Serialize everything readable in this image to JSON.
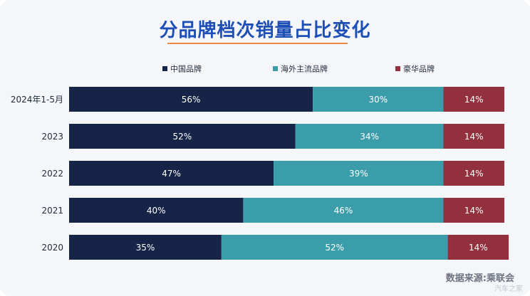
{
  "title": "分品牌档次销量占比变化",
  "source_text": "数据来源:乘联会",
  "watermark_text": "汽车之家",
  "chart_data": {
    "type": "bar",
    "stacked": true,
    "orientation": "horizontal",
    "percent": true,
    "categories": [
      "2024年1-5月",
      "2023",
      "2022",
      "2021",
      "2020"
    ],
    "series": [
      {
        "name": "中国品牌",
        "color": "#152447",
        "values": [
          56,
          52,
          47,
          40,
          35
        ],
        "labels": [
          "56%",
          "52%",
          "47%",
          "40%",
          "35%"
        ]
      },
      {
        "name": "海外主流品牌",
        "color": "#3c9daa",
        "values": [
          30,
          34,
          39,
          46,
          52
        ],
        "labels": [
          "30%",
          "34%",
          "39%",
          "46%",
          "52%"
        ]
      },
      {
        "name": "豪华品牌",
        "color": "#92303d",
        "values": [
          14,
          14,
          14,
          14,
          14
        ],
        "labels": [
          "14%",
          "14%",
          "14%",
          "14%",
          "14%"
        ]
      }
    ],
    "xlim": [
      0,
      100
    ],
    "grid": false,
    "legend": "top"
  }
}
